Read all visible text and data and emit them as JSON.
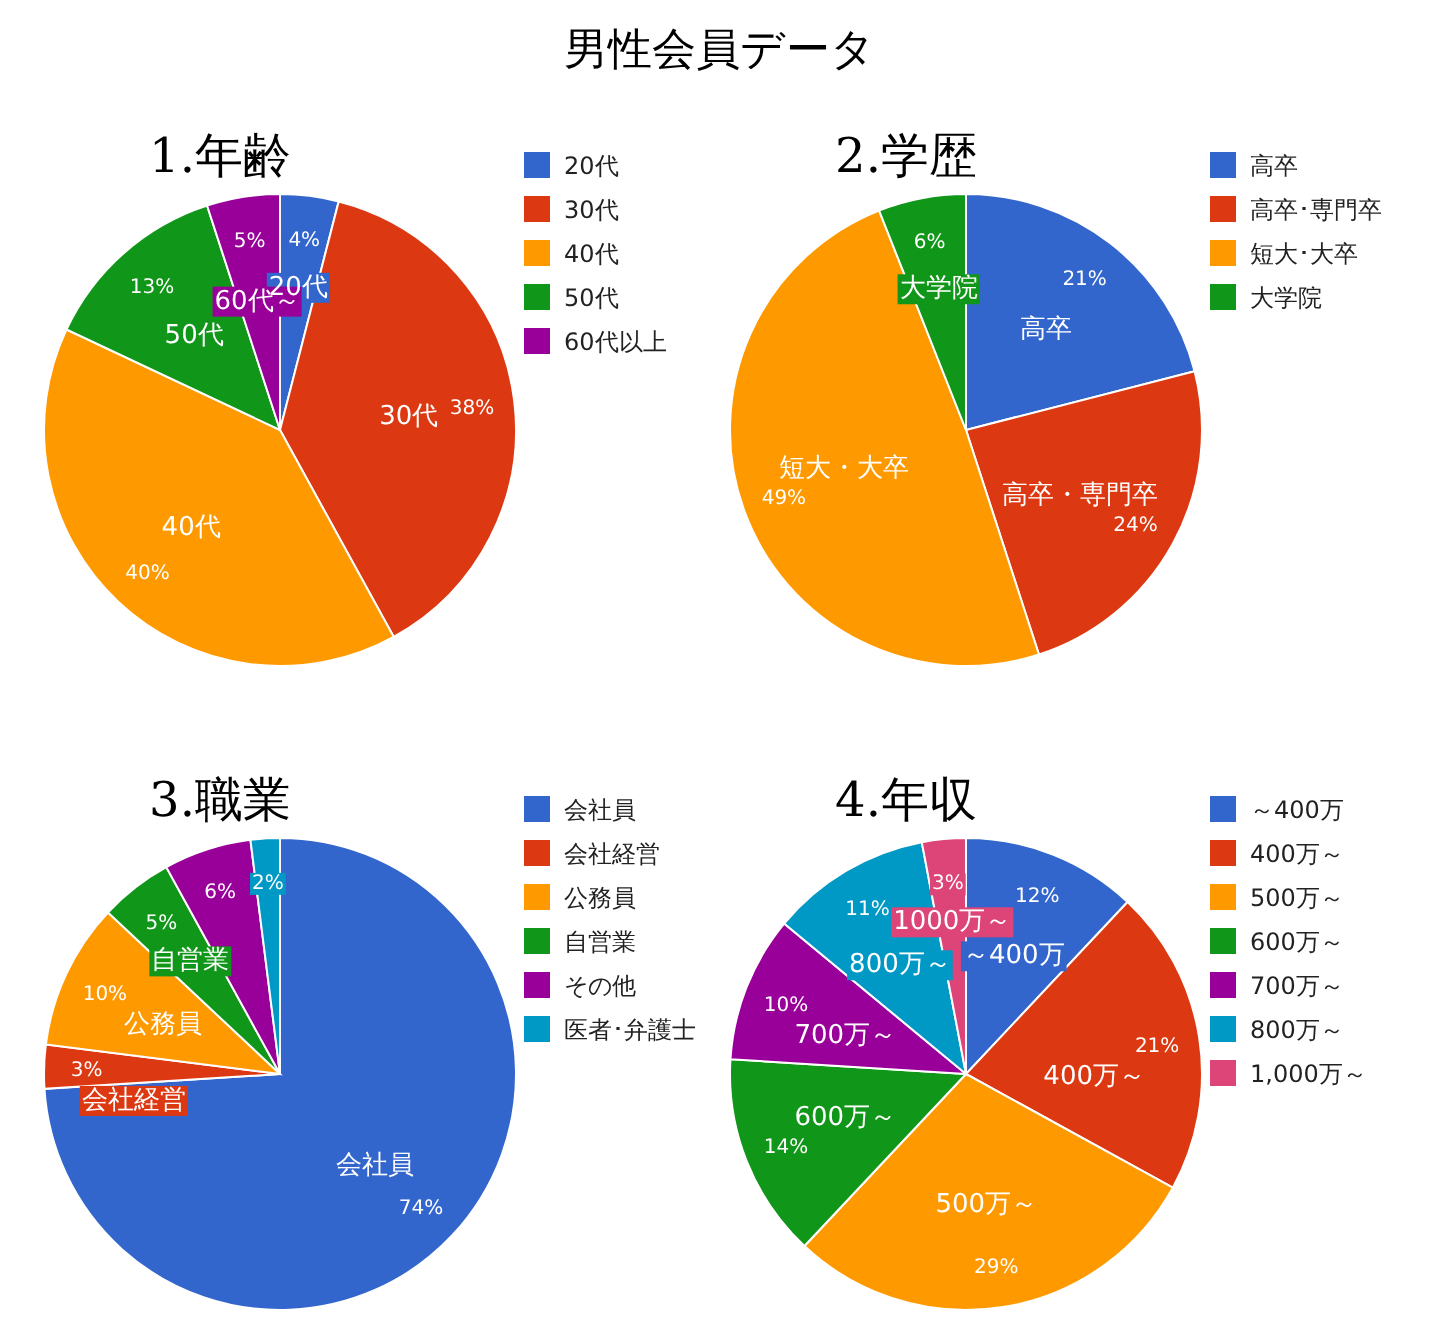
{
  "chart_data": [
    {
      "type": "pie",
      "title": "1.年齢",
      "legend": "right",
      "annotations": [
        "男性会員データ",
        {
          "text": "20代",
          "x": "20代"
        },
        {
          "text": "30代",
          "x": "30代"
        },
        {
          "text": "40代",
          "x": "40代"
        },
        {
          "text": "50代",
          "x": "50代"
        },
        {
          "text": "60代～",
          "x": "60代以上"
        }
      ],
      "categories": [
        "20代",
        "30代",
        "40代",
        "50代",
        "60代以上"
      ],
      "values": [
        4,
        38,
        40,
        13,
        5
      ],
      "value_labels": [
        "4%",
        "38%",
        "40%",
        "13%",
        "5%"
      ],
      "colors": [
        "#3366cc",
        "#dc3912",
        "#ff9900",
        "#109618",
        "#990099"
      ]
    },
    {
      "type": "pie",
      "title": "2.学歴",
      "legend": "right",
      "annotations": [
        {
          "text": "高卒",
          "x": "高卒"
        },
        {
          "text": "高卒・専門卒",
          "x": "高卒･専門卒"
        },
        {
          "text": "短大・大卒",
          "x": "短大･大卒"
        },
        {
          "text": "大学院",
          "x": "大学院"
        }
      ],
      "categories": [
        "高卒",
        "高卒･専門卒",
        "短大･大卒",
        "大学院"
      ],
      "values": [
        21,
        24,
        49,
        6
      ],
      "value_labels": [
        "21%",
        "24%",
        "49%",
        "6%"
      ],
      "colors": [
        "#3366cc",
        "#dc3912",
        "#ff9900",
        "#109618"
      ]
    },
    {
      "type": "pie",
      "title": "3.職業",
      "legend": "right",
      "annotations": [
        {
          "text": "会社員",
          "x": "会社員"
        },
        {
          "text": "会社経営",
          "x": "会社経営"
        },
        {
          "text": "公務員",
          "x": "公務員"
        },
        {
          "text": "自営業",
          "x": "自営業"
        }
      ],
      "categories": [
        "会社員",
        "会社経営",
        "公務員",
        "自営業",
        "その他",
        "医者･弁護士"
      ],
      "values": [
        74,
        3,
        10,
        5,
        6,
        2
      ],
      "value_labels": [
        "74%",
        "3%",
        "10%",
        "5%",
        "6%",
        "2%"
      ],
      "colors": [
        "#3366cc",
        "#dc3912",
        "#ff9900",
        "#109618",
        "#990099",
        "#0099c6"
      ]
    },
    {
      "type": "pie",
      "title": "4.年収",
      "legend": "right",
      "annotations": [
        {
          "text": "～400万",
          "x": "～400万"
        },
        {
          "text": "400万～",
          "x": "400万～"
        },
        {
          "text": "500万～",
          "x": "500万～"
        },
        {
          "text": "600万～",
          "x": "600万～"
        },
        {
          "text": "700万～",
          "x": "700万～"
        },
        {
          "text": "800万～",
          "x": "800万～"
        },
        {
          "text": "1000万～",
          "x": "1,000万～"
        }
      ],
      "categories": [
        "～400万",
        "400万～",
        "500万～",
        "600万～",
        "700万～",
        "800万～",
        "1,000万～"
      ],
      "values": [
        12,
        21,
        29,
        14,
        10,
        11,
        3
      ],
      "value_labels": [
        "12%",
        "21%",
        "29%",
        "14%",
        "10%",
        "11%",
        "3%"
      ],
      "colors": [
        "#3366cc",
        "#dc3912",
        "#ff9900",
        "#109618",
        "#990099",
        "#0099c6",
        "#dd4477"
      ]
    }
  ]
}
